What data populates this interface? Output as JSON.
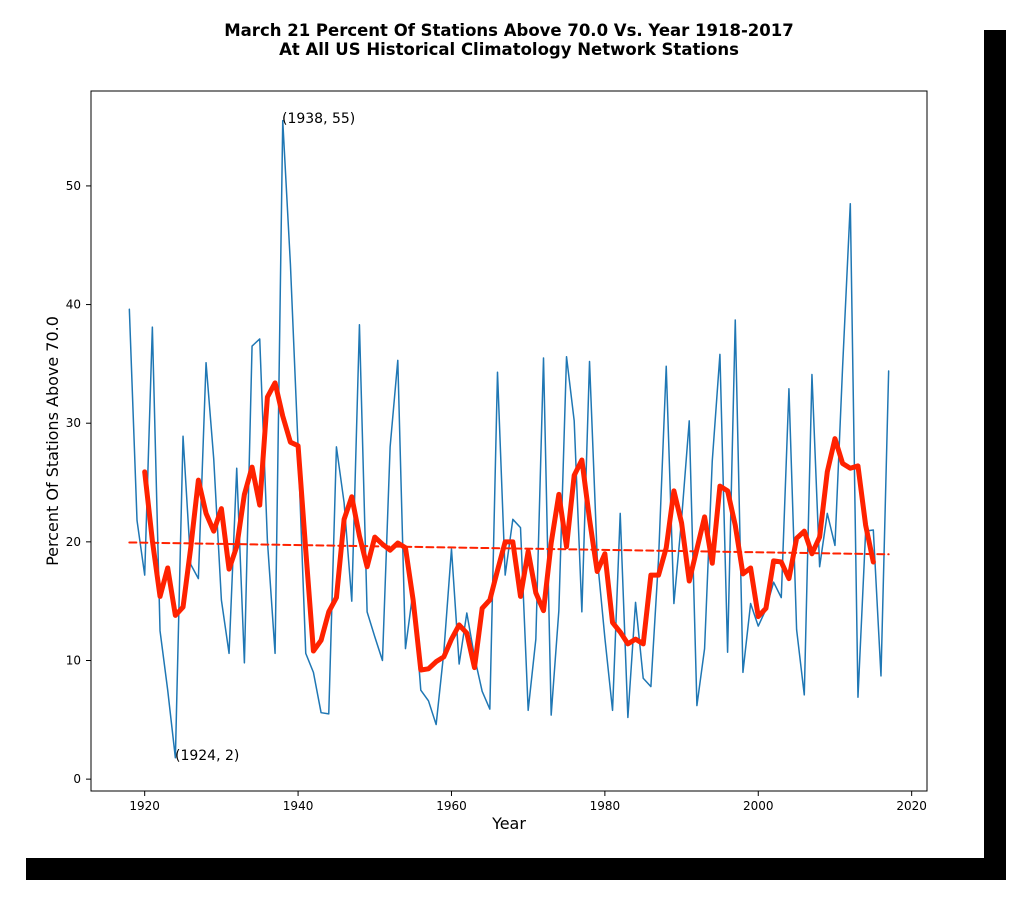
{
  "chart_data": {
    "type": "line",
    "title": [
      "March 21 Percent Of Stations Above 70.0 Vs. Year 1918-2017",
      "At All US Historical Climatology Network Stations"
    ],
    "xlabel": "Year",
    "ylabel": "Percent Of Stations Above 70.0",
    "xlim": [
      1913,
      2022
    ],
    "ylim": [
      -1,
      58
    ],
    "xticks": [
      1920,
      1940,
      1960,
      1980,
      2000,
      2020
    ],
    "yticks": [
      0,
      10,
      20,
      30,
      40,
      50
    ],
    "grid": false,
    "annotations": [
      {
        "text": "(1938, 55)",
        "x": 1938,
        "y": 55
      },
      {
        "text": "(1924, 2)",
        "x": 1924,
        "y": 2
      }
    ],
    "series": [
      {
        "style": "thin-line",
        "color": "#1f77b4",
        "x": [
          1918,
          1919,
          1920,
          1921,
          1922,
          1923,
          1924,
          1925,
          1926,
          1927,
          1928,
          1929,
          1930,
          1931,
          1932,
          1933,
          1934,
          1935,
          1936,
          1937,
          1938,
          1939,
          1940,
          1941,
          1942,
          1943,
          1944,
          1945,
          1946,
          1947,
          1948,
          1949,
          1950,
          1951,
          1952,
          1953,
          1954,
          1955,
          1956,
          1957,
          1958,
          1959,
          1960,
          1961,
          1962,
          1963,
          1964,
          1965,
          1966,
          1967,
          1968,
          1969,
          1970,
          1971,
          1972,
          1973,
          1974,
          1975,
          1976,
          1977,
          1978,
          1979,
          1980,
          1981,
          1982,
          1983,
          1984,
          1985,
          1986,
          1987,
          1988,
          1989,
          1990,
          1991,
          1992,
          1993,
          1994,
          1995,
          1996,
          1997,
          1998,
          1999,
          2000,
          2001,
          2002,
          2003,
          2004,
          2005,
          2006,
          2007,
          2008,
          2009,
          2010,
          2011,
          2012,
          2013,
          2014,
          2015,
          2016,
          2017
        ],
        "y": [
          39.6,
          21.8,
          17.2,
          38.1,
          12.5,
          7.5,
          1.8,
          28.9,
          18.1,
          16.9,
          35.1,
          27.0,
          15.1,
          10.6,
          26.2,
          9.8,
          36.5,
          37.1,
          20.1,
          10.6,
          55.5,
          43.4,
          28.0,
          10.6,
          9.0,
          5.6,
          5.5,
          28.0,
          23.3,
          15.0,
          38.3,
          14.1,
          12.0,
          10.0,
          28.0,
          35.3,
          11.0,
          15.9,
          7.5,
          6.6,
          4.6,
          10.7,
          19.4,
          9.7,
          14.0,
          10.3,
          7.4,
          5.9,
          34.3,
          17.2,
          21.9,
          21.2,
          5.8,
          11.8,
          35.5,
          5.4,
          14.2,
          35.6,
          30.2,
          14.1,
          35.2,
          18.7,
          11.9,
          5.8,
          22.4,
          5.2,
          14.9,
          8.5,
          7.8,
          18.6,
          34.8,
          14.8,
          21.9,
          30.2,
          6.2,
          11.0,
          26.8,
          35.8,
          10.7,
          38.7,
          9.0,
          14.8,
          12.9,
          14.3,
          16.6,
          15.3,
          32.9,
          12.6,
          7.1,
          34.1,
          17.9,
          22.4,
          19.7,
          34.8,
          48.5,
          6.9,
          20.9,
          21.0,
          8.7,
          34.4
        ]
      },
      {
        "style": "thick-line",
        "color": "#ff2200",
        "x": [
          1920,
          1921,
          1922,
          1923,
          1924,
          1925,
          1926,
          1927,
          1928,
          1929,
          1930,
          1931,
          1932,
          1933,
          1934,
          1935,
          1936,
          1937,
          1938,
          1939,
          1940,
          1941,
          1942,
          1943,
          1944,
          1945,
          1946,
          1947,
          1948,
          1949,
          1950,
          1951,
          1952,
          1953,
          1954,
          1955,
          1956,
          1957,
          1958,
          1959,
          1960,
          1961,
          1962,
          1963,
          1964,
          1965,
          1966,
          1967,
          1968,
          1969,
          1970,
          1971,
          1972,
          1973,
          1974,
          1975,
          1976,
          1977,
          1978,
          1979,
          1980,
          1981,
          1982,
          1983,
          1984,
          1985,
          1986,
          1987,
          1988,
          1989,
          1990,
          1991,
          1992,
          1993,
          1994,
          1995,
          1996,
          1997,
          1998,
          1999,
          2000,
          2001,
          2002,
          2003,
          2004,
          2005,
          2006,
          2007,
          2008,
          2009,
          2010,
          2011,
          2012,
          2013,
          2014,
          2015
        ],
        "y": [
          25.9,
          20.1,
          15.4,
          17.8,
          13.8,
          14.5,
          19.5,
          25.2,
          22.4,
          20.9,
          22.8,
          17.7,
          19.6,
          24.0,
          26.3,
          23.1,
          32.2,
          33.4,
          30.6,
          28.4,
          28.1,
          19.3,
          10.8,
          11.7,
          14.1,
          15.3,
          21.9,
          23.8,
          20.5,
          17.9,
          20.4,
          19.8,
          19.3,
          19.9,
          19.5,
          15.1,
          9.2,
          9.3,
          9.9,
          10.3,
          11.8,
          13.0,
          12.3,
          9.4,
          14.4,
          15.1,
          17.6,
          20.0,
          20.0,
          15.4,
          19.2,
          15.7,
          14.2,
          19.9,
          24.0,
          19.6,
          25.6,
          26.9,
          21.9,
          17.5,
          19.0,
          13.2,
          12.4,
          11.4,
          11.8,
          11.4,
          17.2,
          17.2,
          19.5,
          24.3,
          21.6,
          16.7,
          19.4,
          22.1,
          18.2,
          24.7,
          24.3,
          21.4,
          17.3,
          17.8,
          13.7,
          14.4,
          18.4,
          18.3,
          16.9,
          20.3,
          20.9,
          19.0,
          20.4,
          25.9,
          28.7,
          26.6,
          26.2,
          26.4,
          21.4,
          18.3
        ]
      },
      {
        "style": "dashed-trend",
        "color": "#ff2200",
        "x": [
          1918,
          2017
        ],
        "y": [
          19.95,
          18.95
        ]
      }
    ]
  }
}
